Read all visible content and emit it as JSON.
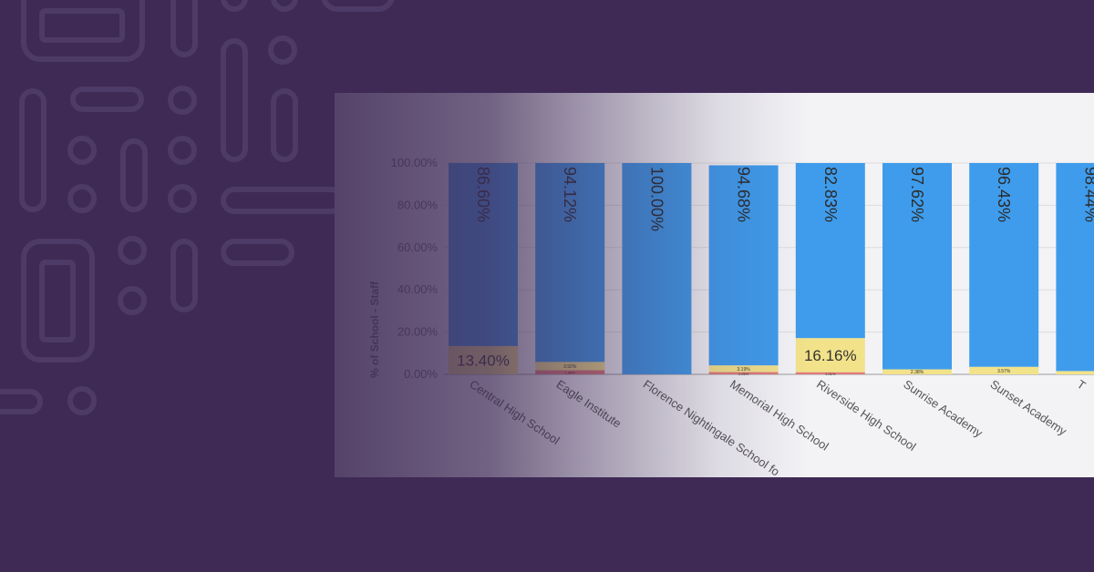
{
  "chart_data": {
    "type": "bar",
    "stacked": true,
    "ylabel": "% of School - Staff",
    "ylim": [
      0,
      100
    ],
    "y_ticks": [
      "0.00%",
      "20.00%",
      "40.00%",
      "60.00%",
      "80.00%",
      "100.00%"
    ],
    "grid": true,
    "categories": [
      "Central High School",
      "Eagle Institute",
      "Florence Nightingale School fo",
      "Memorial High School",
      "Riverside High School",
      "Sunrise Academy",
      "Sunset Academy",
      "T"
    ],
    "series": [
      {
        "values": [
          0,
          1.96,
          0,
          1.06,
          1.01,
          0,
          0,
          0
        ],
        "color": "#e07a7a"
      },
      {
        "values": [
          13.4,
          3.92,
          0,
          3.19,
          16.16,
          2.38,
          3.57,
          1.56
        ],
        "color": "#f2e28a"
      },
      {
        "values": [
          86.6,
          94.12,
          100.0,
          94.68,
          82.83,
          97.62,
          96.43,
          98.44
        ],
        "color": "#3f9cec"
      }
    ],
    "data_labels": {
      "top": [
        "86.60%",
        "94.12%",
        "100.00%",
        "94.68%",
        "82.83%",
        "97.62%",
        "96.43%",
        "98.44%"
      ],
      "middle": [
        "13.40%",
        "3.92%",
        "",
        "3.19%",
        "16.16%",
        "2.38%",
        "3.57%",
        ""
      ],
      "bottom": [
        "",
        "1.96%",
        "",
        "1.06%",
        "1.01%",
        "",
        "",
        ""
      ]
    }
  }
}
